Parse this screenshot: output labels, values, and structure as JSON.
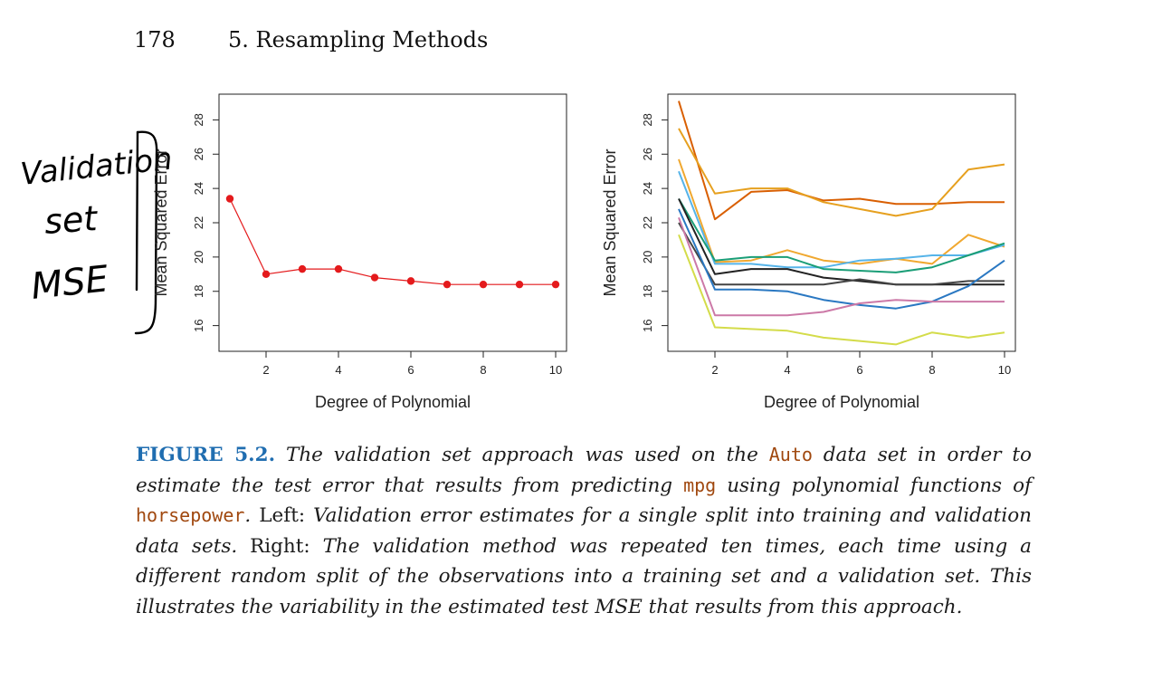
{
  "header": {
    "page_number": "178",
    "section": "5. Resampling Methods"
  },
  "annotation": {
    "lines": [
      "Validation",
      "set",
      "MSE"
    ]
  },
  "chart_data": [
    {
      "type": "scatter",
      "title": "",
      "xlabel": "Degree of Polynomial",
      "ylabel": "Mean Squared Error",
      "x": [
        1,
        2,
        3,
        4,
        5,
        6,
        7,
        8,
        9,
        10
      ],
      "series": [
        {
          "values": [
            23.4,
            19.0,
            19.3,
            19.3,
            18.8,
            18.6,
            18.4,
            18.4,
            18.4,
            18.4
          ],
          "color": "#e41a1c"
        }
      ],
      "xlim": [
        0.7,
        10.3
      ],
      "ylim": [
        14.5,
        29.5
      ],
      "xticks": [
        2,
        4,
        6,
        8,
        10
      ],
      "yticks": [
        16,
        18,
        20,
        22,
        24,
        26,
        28
      ],
      "grid": false,
      "markers": true
    },
    {
      "type": "line",
      "title": "",
      "xlabel": "Degree of Polynomial",
      "ylabel": "Mean Squared Error",
      "x": [
        1,
        2,
        3,
        4,
        5,
        6,
        7,
        8,
        9,
        10
      ],
      "series": [
        {
          "values": [
            29.1,
            22.2,
            23.8,
            23.9,
            23.3,
            23.4,
            23.1,
            23.1,
            23.2,
            23.2
          ],
          "color": "#d95f02"
        },
        {
          "values": [
            27.5,
            23.7,
            24.0,
            24.0,
            23.2,
            22.8,
            22.4,
            22.8,
            25.1,
            25.4
          ],
          "color": "#e6a01f"
        },
        {
          "values": [
            25.7,
            19.7,
            19.8,
            20.4,
            19.8,
            19.6,
            19.9,
            19.6,
            21.3,
            20.6
          ],
          "color": "#f0a830"
        },
        {
          "values": [
            25.0,
            19.6,
            19.6,
            19.4,
            19.4,
            19.8,
            19.9,
            20.1,
            20.1,
            20.7
          ],
          "color": "#56b4e9"
        },
        {
          "values": [
            23.4,
            19.8,
            20.0,
            20.0,
            19.3,
            19.2,
            19.1,
            19.4,
            20.1,
            20.8
          ],
          "color": "#1b9e77"
        },
        {
          "values": [
            23.4,
            19.0,
            19.3,
            19.3,
            18.8,
            18.6,
            18.4,
            18.4,
            18.4,
            18.4
          ],
          "color": "#222222"
        },
        {
          "values": [
            22.0,
            18.4,
            18.4,
            18.4,
            18.4,
            18.7,
            18.4,
            18.4,
            18.6,
            18.6
          ],
          "color": "#444444"
        },
        {
          "values": [
            22.8,
            18.1,
            18.1,
            18.0,
            17.5,
            17.2,
            17.0,
            17.4,
            18.3,
            19.8
          ],
          "color": "#2a78c2"
        },
        {
          "values": [
            22.3,
            16.6,
            16.6,
            16.6,
            16.8,
            17.3,
            17.5,
            17.4,
            17.4,
            17.4
          ],
          "color": "#cc79a7"
        },
        {
          "values": [
            21.3,
            15.9,
            15.8,
            15.7,
            15.3,
            15.1,
            14.9,
            15.6,
            15.3,
            15.6
          ],
          "color": "#d4dc4a"
        }
      ],
      "xlim": [
        0.7,
        10.3
      ],
      "ylim": [
        14.5,
        29.5
      ],
      "xticks": [
        2,
        4,
        6,
        8,
        10
      ],
      "yticks": [
        16,
        18,
        20,
        22,
        24,
        26,
        28
      ],
      "grid": false,
      "markers": false
    }
  ],
  "caption": {
    "figure_label": "FIGURE 5.2.",
    "seg1": "The validation set approach was used on the",
    "code_auto": "Auto",
    "seg2": "data set in order to estimate the test error that results from predicting",
    "code_mpg": "mpg",
    "seg3": "using polynomial functions of",
    "code_horsepower": "horsepower",
    "seg4": ".",
    "left_label": "Left:",
    "seg5": "Validation error estimates for a single split into training and validation data sets.",
    "right_label": "Right:",
    "seg6": "The validation method was repeated ten times, each time using a different random split of the observations into a training set and a validation set. This illustrates the variability in the estimated test MSE that results from this approach."
  }
}
